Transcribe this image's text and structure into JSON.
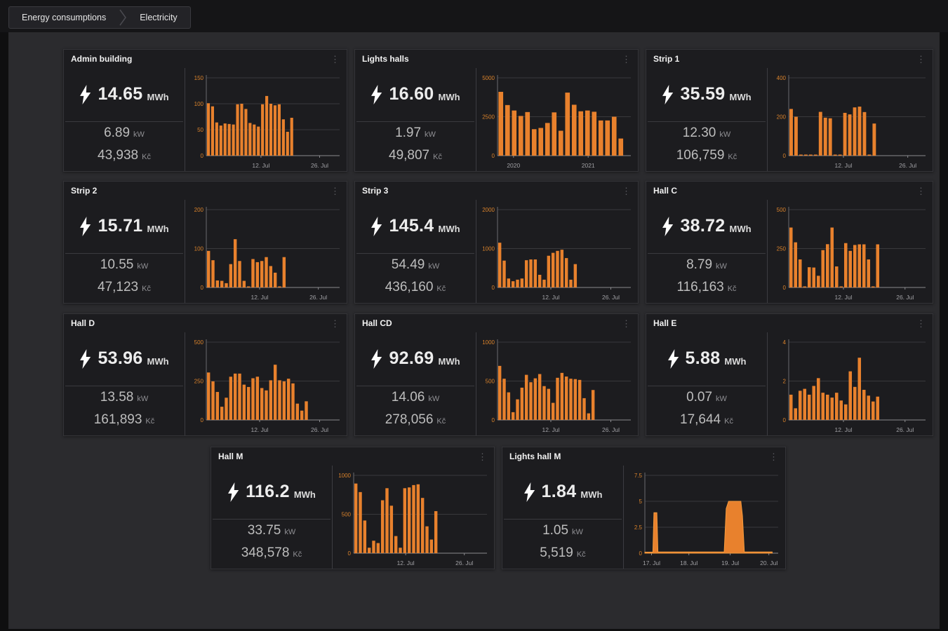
{
  "breadcrumb": {
    "items": [
      "Energy consumptions",
      "Electricity"
    ]
  },
  "icons": {
    "panel_menu": "⋮",
    "bolt": "lightning-bolt"
  },
  "colors": {
    "accent_orange": "#e8812d",
    "area_stroke": "#f59b3e",
    "y_label": "#d9822b",
    "x_label": "#a0a0a4",
    "tile_bg": "#1c1c1f",
    "canvas_bg": "#2b2b2e",
    "topbar_bg": "#151517"
  },
  "tiles": [
    {
      "title": "Admin building",
      "energy": "14.65",
      "energy_unit": "MWh",
      "power": "6.89",
      "power_unit": "kW",
      "cost": "43,938",
      "cost_unit": "Kč",
      "chart": {
        "type": "bar",
        "ymax": 150,
        "yticks": [
          0,
          50,
          100,
          150
        ],
        "xticks": [
          {
            "label": "12. Jul",
            "pos": 0.41
          },
          {
            "label": "26. Jul",
            "pos": 0.85
          }
        ],
        "values": [
          101,
          95,
          64,
          58,
          62,
          61,
          60,
          99,
          100,
          90,
          63,
          60,
          56,
          99,
          115,
          100,
          97,
          99,
          70,
          46,
          73,
          0,
          0,
          0,
          0,
          0,
          0,
          0,
          0,
          0,
          0,
          0
        ]
      }
    },
    {
      "title": "Lights halls",
      "energy": "16.60",
      "energy_unit": "MWh",
      "power": "1.97",
      "power_unit": "kW",
      "cost": "49,807",
      "cost_unit": "Kč",
      "chart": {
        "type": "bar",
        "ymax": 5000,
        "yticks": [
          0,
          2500,
          5000
        ],
        "xticks": [
          {
            "label": "2020",
            "pos": 0.12
          },
          {
            "label": "2021",
            "pos": 0.68
          }
        ],
        "values": [
          4100,
          3250,
          2900,
          2550,
          2800,
          1700,
          1780,
          2100,
          2780,
          1600,
          4050,
          3270,
          2850,
          2900,
          2820,
          2260,
          2260,
          2500,
          1100,
          0
        ]
      }
    },
    {
      "title": "Strip 1",
      "energy": "35.59",
      "energy_unit": "MWh",
      "power": "12.30",
      "power_unit": "kW",
      "cost": "106,759",
      "cost_unit": "Kč",
      "chart": {
        "type": "bar",
        "ymax": 400,
        "yticks": [
          0,
          200,
          400
        ],
        "xticks": [
          {
            "label": "12. Jul",
            "pos": 0.4
          },
          {
            "label": "26. Jul",
            "pos": 0.87
          }
        ],
        "values": [
          240,
          200,
          0,
          0,
          0,
          0,
          225,
          195,
          192,
          0,
          0,
          220,
          212,
          248,
          252,
          224,
          0,
          165,
          0,
          0,
          0,
          0,
          0,
          0,
          0,
          0,
          0,
          0
        ]
      }
    },
    {
      "title": "Strip 2",
      "energy": "15.71",
      "energy_unit": "MWh",
      "power": "10.55",
      "power_unit": "kW",
      "cost": "47,123",
      "cost_unit": "Kč",
      "chart": {
        "type": "bar",
        "ymax": 200,
        "yticks": [
          0,
          100,
          200
        ],
        "xticks": [
          {
            "label": "12. Jul",
            "pos": 0.4
          },
          {
            "label": "26. Jul",
            "pos": 0.84
          }
        ],
        "values": [
          94,
          70,
          18,
          17,
          11,
          60,
          124,
          68,
          17,
          0,
          73,
          65,
          68,
          78,
          55,
          38,
          0,
          78,
          0,
          0,
          0,
          0,
          0,
          0,
          0,
          0,
          0,
          0,
          0,
          0
        ]
      }
    },
    {
      "title": "Strip 3",
      "energy": "145.4",
      "energy_unit": "MWh",
      "power": "54.49",
      "power_unit": "kW",
      "cost": "436,160",
      "cost_unit": "Kč",
      "chart": {
        "type": "bar",
        "ymax": 2000,
        "yticks": [
          0,
          1000,
          2000
        ],
        "xticks": [
          {
            "label": "12. Jul",
            "pos": 0.4
          },
          {
            "label": "26. Jul",
            "pos": 0.85
          }
        ],
        "values": [
          1150,
          690,
          230,
          160,
          200,
          230,
          700,
          720,
          720,
          325,
          200,
          815,
          890,
          940,
          970,
          755,
          200,
          600,
          0,
          0,
          0,
          0,
          0,
          0,
          0,
          0,
          0,
          0,
          0,
          0
        ]
      }
    },
    {
      "title": "Hall C",
      "energy": "38.72",
      "energy_unit": "MWh",
      "power": "8.79",
      "power_unit": "kW",
      "cost": "116,163",
      "cost_unit": "Kč",
      "chart": {
        "type": "bar",
        "ymax": 500,
        "yticks": [
          0,
          250,
          500
        ],
        "xticks": [
          {
            "label": "12. Jul",
            "pos": 0.4
          },
          {
            "label": "26. Jul",
            "pos": 0.85
          }
        ],
        "values": [
          385,
          290,
          180,
          0,
          130,
          128,
          75,
          240,
          278,
          385,
          135,
          0,
          285,
          235,
          273,
          277,
          277,
          180,
          0,
          277,
          0,
          0,
          0,
          0,
          0,
          0,
          0,
          0,
          0,
          0
        ]
      }
    },
    {
      "title": "Hall D",
      "energy": "53.96",
      "energy_unit": "MWh",
      "power": "13.58",
      "power_unit": "kW",
      "cost": "161,893",
      "cost_unit": "Kč",
      "chart": {
        "type": "bar",
        "ymax": 500,
        "yticks": [
          0,
          250,
          500
        ],
        "xticks": [
          {
            "label": "12. Jul",
            "pos": 0.4
          },
          {
            "label": "26. Jul",
            "pos": 0.85
          }
        ],
        "values": [
          305,
          248,
          180,
          85,
          143,
          278,
          298,
          298,
          227,
          212,
          268,
          278,
          205,
          190,
          255,
          355,
          255,
          248,
          265,
          235,
          105,
          60,
          120,
          0,
          0,
          0,
          0,
          0,
          0,
          0
        ]
      }
    },
    {
      "title": "Hall CD",
      "energy": "92.69",
      "energy_unit": "MWh",
      "power": "14.06",
      "power_unit": "kW",
      "cost": "278,056",
      "cost_unit": "Kč",
      "chart": {
        "type": "bar",
        "ymax": 1000,
        "yticks": [
          0,
          500,
          1000
        ],
        "xticks": [
          {
            "label": "12. Jul",
            "pos": 0.4
          },
          {
            "label": "26. Jul",
            "pos": 0.85
          }
        ],
        "values": [
          695,
          530,
          355,
          100,
          265,
          415,
          580,
          485,
          535,
          590,
          435,
          400,
          220,
          542,
          605,
          558,
          530,
          525,
          515,
          280,
          85,
          385,
          0,
          0,
          0,
          0,
          0,
          0,
          0,
          0
        ]
      }
    },
    {
      "title": "Hall E",
      "energy": "5.88",
      "energy_unit": "MWh",
      "power": "0.07",
      "power_unit": "kW",
      "cost": "17,644",
      "cost_unit": "Kč",
      "chart": {
        "type": "bar",
        "ymax": 4,
        "yticks": [
          0,
          2,
          4
        ],
        "xticks": [
          {
            "label": "12. Jul",
            "pos": 0.4
          },
          {
            "label": "26. Jul",
            "pos": 0.85
          }
        ],
        "values": [
          1.3,
          0.6,
          1.5,
          1.6,
          1.3,
          1.75,
          2.15,
          1.4,
          1.3,
          1.15,
          1.4,
          1.0,
          0.8,
          2.5,
          1.7,
          3.2,
          1.55,
          1.25,
          0.95,
          1.2,
          0,
          0,
          0,
          0,
          0,
          0,
          0,
          0,
          0,
          0
        ]
      }
    },
    {
      "title": "Hall M",
      "energy": "116.2",
      "energy_unit": "MWh",
      "power": "33.75",
      "power_unit": "kW",
      "cost": "348,578",
      "cost_unit": "Kč",
      "chart": {
        "type": "bar",
        "ymax": 1000,
        "yticks": [
          0,
          500,
          1000
        ],
        "xticks": [
          {
            "label": "12. Jul",
            "pos": 0.39
          },
          {
            "label": "26. Jul",
            "pos": 0.83
          }
        ],
        "values": [
          895,
          785,
          420,
          70,
          160,
          130,
          680,
          835,
          610,
          220,
          70,
          835,
          845,
          875,
          885,
          710,
          345,
          175,
          540,
          0,
          0,
          0,
          0,
          0,
          0,
          0,
          0,
          0,
          0,
          0
        ]
      }
    },
    {
      "title": "Lights hall M",
      "energy": "1.84",
      "energy_unit": "MWh",
      "power": "1.05",
      "power_unit": "kW",
      "cost": "5,519",
      "cost_unit": "Kč",
      "chart": {
        "type": "area",
        "ymax": 7.5,
        "yticks": [
          0,
          2.5,
          5,
          7.5
        ],
        "xticks": [
          {
            "label": "17. Jul",
            "pos": 0.05
          },
          {
            "label": "18. Jul",
            "pos": 0.33
          },
          {
            "label": "19. Jul",
            "pos": 0.64
          },
          {
            "label": "20. Jul",
            "pos": 0.93
          }
        ],
        "points": [
          [
            0.0,
            0.1
          ],
          [
            0.06,
            0.1
          ],
          [
            0.068,
            3.9
          ],
          [
            0.09,
            3.9
          ],
          [
            0.098,
            0.12
          ],
          [
            0.595,
            0.12
          ],
          [
            0.61,
            4.3
          ],
          [
            0.628,
            5.0
          ],
          [
            0.72,
            5.0
          ],
          [
            0.732,
            3.6
          ],
          [
            0.746,
            0.12
          ],
          [
            0.955,
            0.12
          ],
          [
            0.955,
            0.0
          ]
        ]
      }
    }
  ]
}
